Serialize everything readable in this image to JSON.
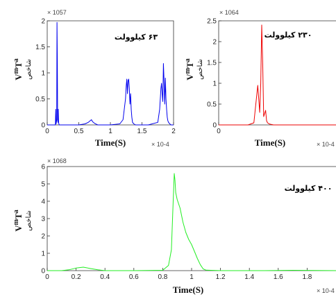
{
  "chart_data": [
    {
      "type": "line",
      "annotation": "۶۳ کیلوولت",
      "xlabel": "Time(S)",
      "ylabel_main": "V",
      "ylabel_sub": "T",
      "ylabel_sup1": "m",
      "ylabel_sup2": "a",
      "ylabel_fa": "شاخص",
      "x_exponent": "× 10^{-4}",
      "y_exponent": "× 10^{57}",
      "xlim": [
        0,
        2
      ],
      "ylim": [
        0,
        2
      ],
      "xticks": [
        0,
        0.5,
        1,
        1.5,
        2
      ],
      "xtick_labels": [
        "0",
        "0.5",
        "1",
        "1.5",
        "2"
      ],
      "yticks": [
        0,
        0.5,
        1,
        1.5,
        2
      ],
      "ytick_labels": [
        "0",
        "0.5",
        "1",
        "1.5",
        "2"
      ],
      "color": "#0000ee",
      "x": [
        0,
        0.1,
        0.13,
        0.135,
        0.14,
        0.145,
        0.15,
        0.155,
        0.16,
        0.165,
        0.17,
        0.175,
        0.18,
        0.19,
        0.2,
        0.3,
        0.5,
        0.6,
        0.65,
        0.68,
        0.7,
        0.72,
        0.75,
        0.8,
        1.0,
        1.15,
        1.2,
        1.22,
        1.24,
        1.25,
        1.26,
        1.27,
        1.28,
        1.29,
        1.3,
        1.31,
        1.32,
        1.33,
        1.34,
        1.35,
        1.37,
        1.4,
        1.6,
        1.75,
        1.78,
        1.8,
        1.81,
        1.82,
        1.83,
        1.84,
        1.85,
        1.86,
        1.87,
        1.88,
        1.89,
        1.9,
        1.91,
        1.92,
        1.94,
        1.96,
        2.0
      ],
      "y": [
        0,
        0,
        0,
        0.3,
        0.02,
        0.05,
        0.1,
        1.97,
        1.2,
        0.1,
        0.05,
        0.3,
        0.04,
        0,
        0,
        0,
        0,
        0.02,
        0.05,
        0.08,
        0.1,
        0.06,
        0.03,
        0,
        0,
        0.02,
        0.1,
        0.3,
        0.5,
        0.75,
        0.88,
        0.6,
        0.85,
        0.88,
        0.7,
        0.4,
        0.6,
        0.3,
        0.15,
        0.05,
        0.02,
        0,
        0,
        0.05,
        0.3,
        0.7,
        0.8,
        0.6,
        0.45,
        1.18,
        0.85,
        0.4,
        0.9,
        0.5,
        0.3,
        0.15,
        0.08,
        0.05,
        0.02,
        0,
        0
      ]
    },
    {
      "type": "line",
      "annotation": "۲۳۰ کیلوولت",
      "xlabel": "Time(S)",
      "ylabel_main": "V",
      "ylabel_sub": "T",
      "ylabel_sup1": "m",
      "ylabel_sup2": "a",
      "ylabel_fa": "شاخص",
      "x_exponent": "× 10^{-4}",
      "y_exponent": "× 10^{64}",
      "xlim": [
        0,
        0.6
      ],
      "ylim": [
        0,
        2.5
      ],
      "xticks": [
        0
      ],
      "xtick_labels": [
        "0"
      ],
      "yticks": [
        0,
        0.5,
        1,
        1.5,
        2,
        2.5
      ],
      "ytick_labels": [
        "0",
        "0.5",
        "1",
        "1.5",
        "2",
        "2.5"
      ],
      "color": "#ee0000",
      "x": [
        0,
        0.15,
        0.18,
        0.19,
        0.2,
        0.21,
        0.215,
        0.22,
        0.225,
        0.23,
        0.24,
        0.245,
        0.25,
        0.26,
        0.28,
        0.3,
        0.4,
        0.6
      ],
      "y": [
        0,
        0,
        0.05,
        0.5,
        0.95,
        0.3,
        1.0,
        2.4,
        1.5,
        0.2,
        0.35,
        0.1,
        0.05,
        0.02,
        0,
        0,
        0,
        0
      ]
    },
    {
      "type": "line",
      "annotation": "۴۰۰ کیلوولت",
      "xlabel": "Time(S)",
      "ylabel_main": "V",
      "ylabel_sub": "T",
      "ylabel_sup1": "m",
      "ylabel_sup2": "a",
      "ylabel_fa": "شاخص",
      "x_exponent": "× 10^{-4}",
      "y_exponent": "× 10^{68}",
      "xlim": [
        0,
        2
      ],
      "ylim": [
        0,
        6
      ],
      "xticks": [
        0,
        0.2,
        0.4,
        0.6,
        0.8,
        1,
        1.2,
        1.4,
        1.6,
        1.8
      ],
      "xtick_labels": [
        "0",
        "0.2",
        "0.4",
        "0.6",
        "0.8",
        "1",
        "1.2",
        "1.4",
        "1.6",
        "1.8"
      ],
      "yticks": [
        0,
        1,
        2,
        3,
        4,
        5,
        6
      ],
      "ytick_labels": [
        "0",
        "1",
        "2",
        "3",
        "4",
        "5",
        "6"
      ],
      "color": "#22ee22",
      "x": [
        0,
        0.1,
        0.15,
        0.2,
        0.25,
        0.3,
        0.35,
        0.4,
        0.6,
        0.8,
        0.84,
        0.86,
        0.87,
        0.88,
        0.885,
        0.89,
        0.9,
        0.92,
        0.94,
        0.96,
        0.98,
        1.0,
        1.02,
        1.04,
        1.06,
        1.08,
        1.1,
        1.2,
        1.5,
        1.7,
        2.0
      ],
      "y": [
        0,
        0,
        0.05,
        0.15,
        0.2,
        0.12,
        0.05,
        0,
        0,
        0.02,
        0.3,
        1.2,
        3.5,
        5.6,
        5.2,
        4.5,
        4.1,
        3.6,
        2.8,
        2.2,
        1.8,
        1.5,
        1.1,
        0.7,
        0.35,
        0.1,
        0.03,
        0,
        0,
        0.02,
        0
      ]
    }
  ]
}
